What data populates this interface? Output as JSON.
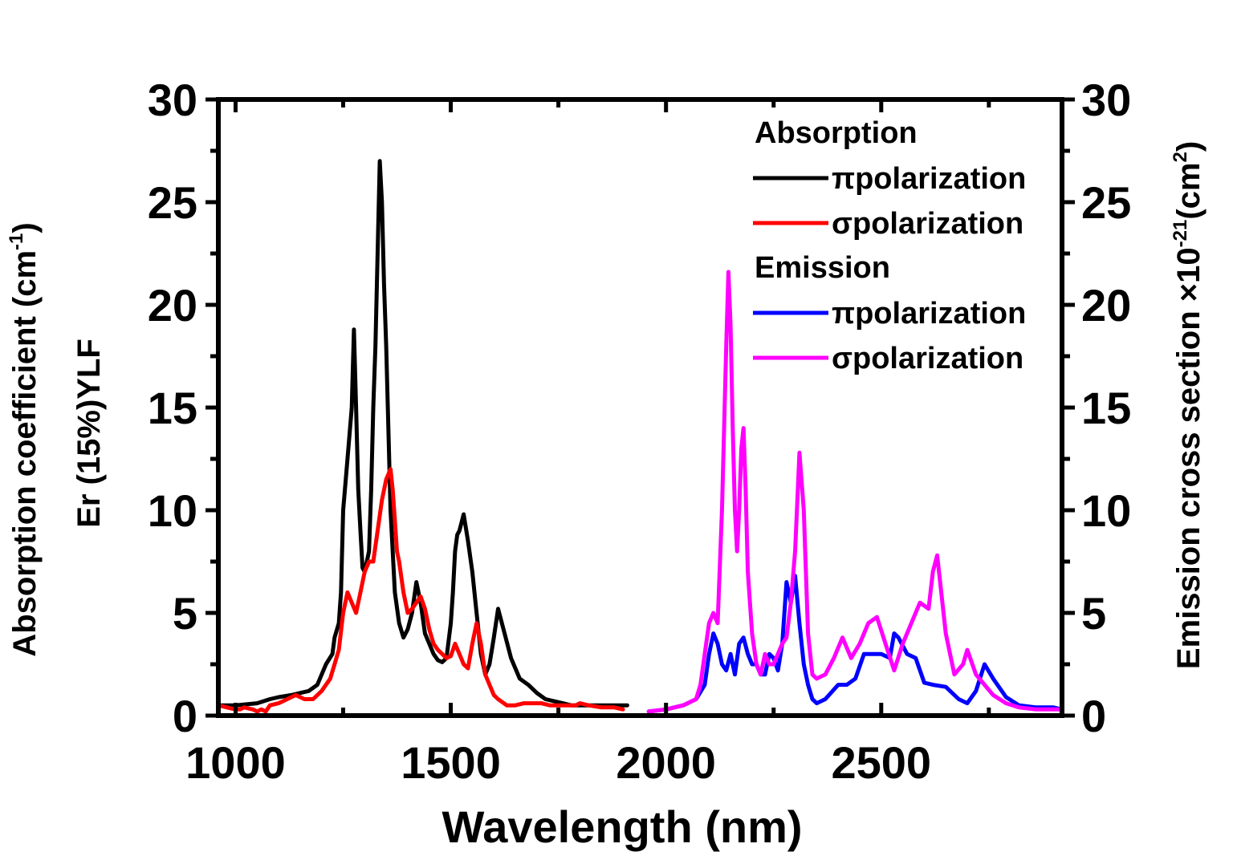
{
  "chart_data": {
    "type": "line",
    "title": "",
    "xlabel": "Wavelength (nm)",
    "ylabel_left_line1": "Absorption coefficient (cm",
    "ylabel_left_sup": "-1",
    "ylabel_left_close": ")",
    "ylabel_left_line2": "Er (15%)YLF",
    "ylabel_right_main": "Emission cross section ×10",
    "ylabel_right_sup1": "-21",
    "ylabel_right_mid": "(cm",
    "ylabel_right_sup2": "2",
    "ylabel_right_close": ")",
    "xlim": [
      960,
      2920
    ],
    "ylim_left": [
      0,
      30
    ],
    "ylim_right": [
      0,
      30
    ],
    "x_ticks": [
      1000,
      1500,
      2000,
      2500
    ],
    "y_ticks": [
      0,
      5,
      10,
      15,
      20,
      25,
      30
    ],
    "legend": {
      "group1": "Absorption",
      "group2": "Emission",
      "entries": [
        {
          "label": "πpolarization",
          "color": "#000000"
        },
        {
          "label": "σpolarization",
          "color": "#ff0000"
        },
        {
          "label": "πpolarization",
          "color": "#0000ff"
        },
        {
          "label": "σpolarization",
          "color": "#ff00ff"
        }
      ]
    },
    "series": [
      {
        "name": "Absorption π polarization",
        "axis": "left",
        "color": "#000000",
        "x": [
          960,
          1000,
          1050,
          1080,
          1100,
          1130,
          1150,
          1170,
          1190,
          1200,
          1210,
          1225,
          1230,
          1240,
          1245,
          1250,
          1260,
          1270,
          1275,
          1280,
          1285,
          1290,
          1295,
          1300,
          1310,
          1315,
          1320,
          1325,
          1335,
          1340,
          1345,
          1350,
          1360,
          1370,
          1380,
          1390,
          1400,
          1410,
          1420,
          1430,
          1440,
          1450,
          1460,
          1470,
          1480,
          1490,
          1500,
          1505,
          1510,
          1515,
          1520,
          1530,
          1540,
          1550,
          1560,
          1570,
          1580,
          1590,
          1600,
          1610,
          1625,
          1640,
          1660,
          1680,
          1700,
          1720,
          1740,
          1760,
          1780,
          1800,
          1830,
          1860,
          1880,
          1900,
          1910
        ],
        "y": [
          0.5,
          0.5,
          0.6,
          0.8,
          0.9,
          1.0,
          1.1,
          1.2,
          1.5,
          2.0,
          2.5,
          3.0,
          3.8,
          4.5,
          6.0,
          10.0,
          12.5,
          15.0,
          18.8,
          15.0,
          11.0,
          9.0,
          7.2,
          7.0,
          8.0,
          11.0,
          15.0,
          18.0,
          27.0,
          25.0,
          21.0,
          18.0,
          10.0,
          6.0,
          4.5,
          3.8,
          4.2,
          5.0,
          6.5,
          5.5,
          4.0,
          3.5,
          3.0,
          2.7,
          2.6,
          2.8,
          4.5,
          6.0,
          8.0,
          8.8,
          9.0,
          9.8,
          8.5,
          7.0,
          5.0,
          3.0,
          2.0,
          2.5,
          3.8,
          5.2,
          4.0,
          2.8,
          1.8,
          1.5,
          1.1,
          0.8,
          0.7,
          0.6,
          0.5,
          0.5,
          0.5,
          0.5,
          0.5,
          0.5,
          0.5
        ]
      },
      {
        "name": "Absorption σ polarization",
        "axis": "left",
        "color": "#ff0000",
        "x": [
          960,
          980,
          1000,
          1010,
          1020,
          1040,
          1050,
          1060,
          1070,
          1080,
          1100,
          1120,
          1140,
          1160,
          1180,
          1200,
          1220,
          1230,
          1240,
          1250,
          1260,
          1270,
          1280,
          1290,
          1300,
          1310,
          1320,
          1330,
          1340,
          1350,
          1360,
          1365,
          1370,
          1375,
          1380,
          1390,
          1400,
          1410,
          1420,
          1430,
          1440,
          1450,
          1460,
          1470,
          1480,
          1490,
          1500,
          1510,
          1520,
          1530,
          1540,
          1550,
          1560,
          1570,
          1580,
          1590,
          1600,
          1610,
          1630,
          1650,
          1670,
          1690,
          1710,
          1730,
          1760,
          1790,
          1800,
          1820,
          1850,
          1880,
          1900
        ],
        "y": [
          0.5,
          0.4,
          0.3,
          0.3,
          0.4,
          0.3,
          0.2,
          0.3,
          0.2,
          0.5,
          0.6,
          0.8,
          1.0,
          0.8,
          0.8,
          1.2,
          1.8,
          2.5,
          3.2,
          5.0,
          6.0,
          5.5,
          5.0,
          6.0,
          7.0,
          7.5,
          7.5,
          9.0,
          10.5,
          11.5,
          12.0,
          11.0,
          9.5,
          8.0,
          7.5,
          6.0,
          5.0,
          5.2,
          5.5,
          5.8,
          5.2,
          4.2,
          3.5,
          3.2,
          3.0,
          2.8,
          2.9,
          3.5,
          3.0,
          2.5,
          2.3,
          3.5,
          4.5,
          3.5,
          2.0,
          1.5,
          1.0,
          0.8,
          0.5,
          0.5,
          0.6,
          0.6,
          0.6,
          0.5,
          0.5,
          0.5,
          0.6,
          0.5,
          0.4,
          0.4,
          0.3
        ]
      },
      {
        "name": "Emission π polarization",
        "axis": "right",
        "color": "#0000ff",
        "x": [
          1960,
          2000,
          2040,
          2070,
          2090,
          2100,
          2110,
          2120,
          2130,
          2140,
          2150,
          2160,
          2170,
          2180,
          2190,
          2200,
          2210,
          2220,
          2230,
          2240,
          2250,
          2260,
          2270,
          2280,
          2290,
          2300,
          2310,
          2320,
          2330,
          2340,
          2350,
          2370,
          2400,
          2420,
          2440,
          2460,
          2480,
          2500,
          2520,
          2530,
          2540,
          2560,
          2580,
          2600,
          2620,
          2650,
          2680,
          2700,
          2720,
          2740,
          2760,
          2790,
          2820,
          2860,
          2900,
          2920
        ],
        "y": [
          0.2,
          0.3,
          0.5,
          0.8,
          1.5,
          3.0,
          4.0,
          3.5,
          2.5,
          2.2,
          3.0,
          2.0,
          3.5,
          3.8,
          3.0,
          2.5,
          2.5,
          2.0,
          2.0,
          3.0,
          2.8,
          2.2,
          3.5,
          6.5,
          5.5,
          6.8,
          4.5,
          2.5,
          1.5,
          0.8,
          0.6,
          0.8,
          1.5,
          1.5,
          1.8,
          3.0,
          3.0,
          3.0,
          2.8,
          4.0,
          3.8,
          3.0,
          2.8,
          1.6,
          1.5,
          1.4,
          0.8,
          0.6,
          1.2,
          2.5,
          1.8,
          0.9,
          0.5,
          0.4,
          0.4,
          0.3
        ]
      },
      {
        "name": "Emission σ polarization",
        "axis": "right",
        "color": "#ff00ff",
        "x": [
          1960,
          2000,
          2040,
          2070,
          2080,
          2090,
          2100,
          2110,
          2120,
          2130,
          2140,
          2145,
          2150,
          2155,
          2160,
          2165,
          2170,
          2175,
          2180,
          2185,
          2190,
          2200,
          2210,
          2220,
          2230,
          2240,
          2250,
          2260,
          2270,
          2280,
          2290,
          2300,
          2310,
          2320,
          2330,
          2340,
          2350,
          2370,
          2390,
          2410,
          2430,
          2450,
          2470,
          2490,
          2510,
          2530,
          2550,
          2570,
          2590,
          2610,
          2620,
          2630,
          2650,
          2670,
          2690,
          2700,
          2720,
          2740,
          2760,
          2790,
          2820,
          2860,
          2900,
          2920
        ],
        "y": [
          0.2,
          0.3,
          0.5,
          0.8,
          1.5,
          3.0,
          4.5,
          5.0,
          4.5,
          10.0,
          18.0,
          21.6,
          19.0,
          14.0,
          10.0,
          8.0,
          10.0,
          13.0,
          14.0,
          11.0,
          7.0,
          4.0,
          2.5,
          2.0,
          3.0,
          2.5,
          2.5,
          3.0,
          3.5,
          3.8,
          5.5,
          8.0,
          12.8,
          10.0,
          4.0,
          2.0,
          1.8,
          2.0,
          2.8,
          3.8,
          2.8,
          3.5,
          4.5,
          4.8,
          3.5,
          2.2,
          3.5,
          4.5,
          5.5,
          5.2,
          7.0,
          7.8,
          4.0,
          2.0,
          2.5,
          3.2,
          2.0,
          1.5,
          1.0,
          0.6,
          0.4,
          0.3,
          0.3,
          0.3
        ]
      }
    ]
  }
}
